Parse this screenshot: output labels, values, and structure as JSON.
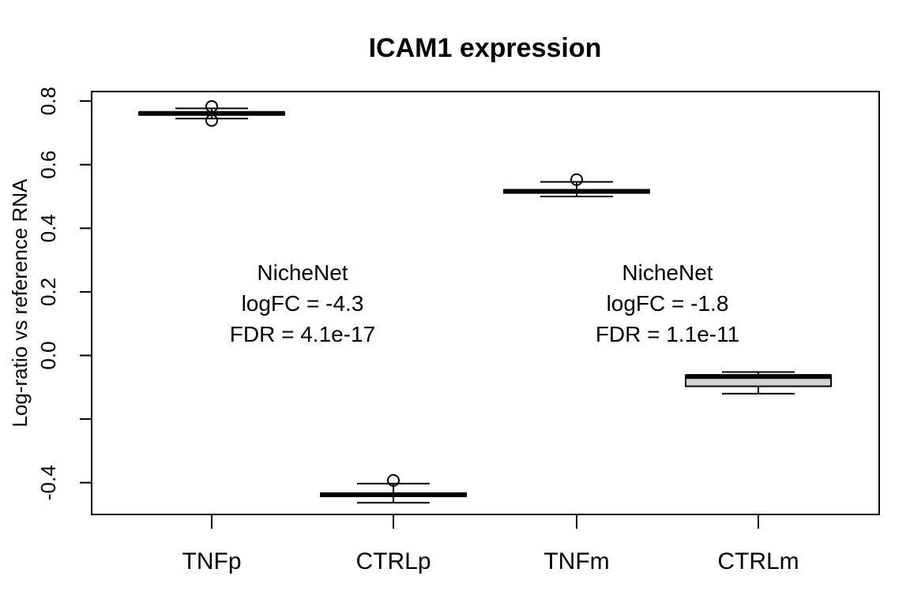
{
  "chart_data": {
    "type": "boxplot",
    "title": "ICAM1 expression",
    "xlabel": "",
    "ylabel": "Log-ratio vs reference RNA",
    "categories": [
      "TNFp",
      "CTRLp",
      "TNFm",
      "CTRLm"
    ],
    "ylim": [
      -0.5,
      0.83
    ],
    "y_ticks": [
      {
        "value": 0.8,
        "label": "0.8"
      },
      {
        "value": 0.6,
        "label": "0.6"
      },
      {
        "value": 0.4,
        "label": "0.4"
      },
      {
        "value": 0.2,
        "label": "0.2"
      },
      {
        "value": 0.0,
        "label": "0.0"
      },
      {
        "value": -0.2,
        "label": ""
      },
      {
        "value": -0.4,
        "label": "-0.4"
      }
    ],
    "series": [
      {
        "category": "TNFp",
        "min": 0.745,
        "q1": 0.757,
        "median": 0.761,
        "q3": 0.765,
        "max": 0.777,
        "outliers": [
          0.783,
          0.739
        ],
        "fill": "#d3d3d3"
      },
      {
        "category": "CTRLp",
        "min": -0.463,
        "q1": -0.443,
        "median": -0.438,
        "q3": -0.433,
        "max": -0.403,
        "outliers": [
          -0.393
        ],
        "fill": "#d3d3d3"
      },
      {
        "category": "TNFm",
        "min": 0.5,
        "q1": 0.511,
        "median": 0.516,
        "q3": 0.521,
        "max": 0.546,
        "outliers": [
          0.553
        ],
        "fill": "#d3d3d3"
      },
      {
        "category": "CTRLm",
        "min": -0.12,
        "q1": -0.097,
        "median": -0.066,
        "q3": -0.062,
        "max": -0.052,
        "outliers": [],
        "fill": "#d3d3d3"
      }
    ],
    "annotations": [
      {
        "between": [
          "TNFp",
          "CTRLp"
        ],
        "lines": [
          "NicheNet",
          "logFC = -4.3",
          "FDR = 4.1e-17"
        ]
      },
      {
        "between": [
          "TNFm",
          "CTRLm"
        ],
        "lines": [
          "NicheNet",
          "logFC = -1.8",
          "FDR = 1.1e-11"
        ]
      }
    ],
    "grid": false,
    "legend": "none"
  }
}
